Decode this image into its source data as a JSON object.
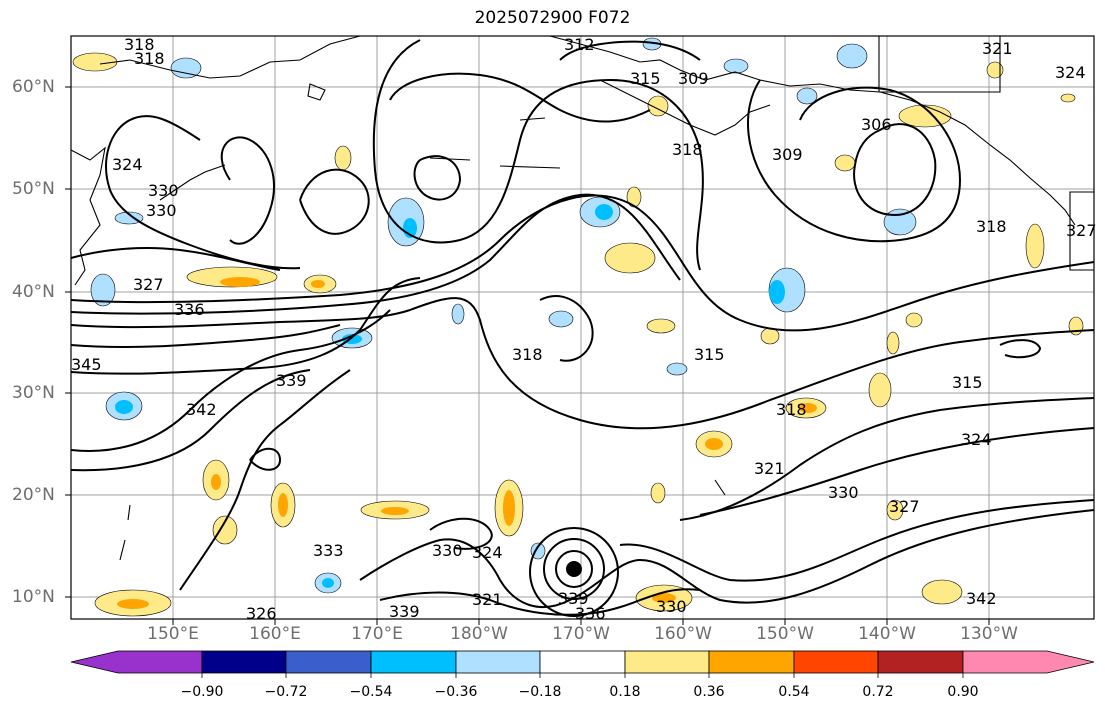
{
  "title": "2025072900 F072",
  "lon_labels": [
    "150°E",
    "160°E",
    "170°E",
    "180°W",
    "170°W",
    "160°W",
    "150°W",
    "140°W",
    "130°W"
  ],
  "lat_labels": [
    "60°N",
    "50°N",
    "40°N",
    "30°N",
    "20°N",
    "10°N"
  ],
  "contour_labels": [
    "318",
    "318",
    "312",
    "315",
    "309",
    "318",
    "321",
    "324",
    "306",
    "309",
    "324",
    "330",
    "330",
    "327",
    "336",
    "318",
    "315",
    "315",
    "318",
    "327",
    "318",
    "345",
    "342",
    "339",
    "324",
    "321",
    "330",
    "327",
    "333",
    "330",
    "324",
    "321",
    "339",
    "339",
    "336",
    "330",
    "342",
    "326"
  ],
  "colorbar": {
    "tick_labels": [
      "−0.90",
      "−0.72",
      "−0.54",
      "−0.36",
      "−0.18",
      "0.18",
      "0.36",
      "0.54",
      "0.72",
      "0.90"
    ],
    "colors": [
      "#9932cc",
      "#00008b",
      "#3a5fcd",
      "#00bfff",
      "#afe0ff",
      "#ffffff",
      "#ffea8a",
      "#ffa500",
      "#ff4500",
      "#b22222",
      "#ff88b0"
    ]
  },
  "colors": {
    "contour": "#000000",
    "grid": "#a0a0a0",
    "coast": "#000000"
  }
}
